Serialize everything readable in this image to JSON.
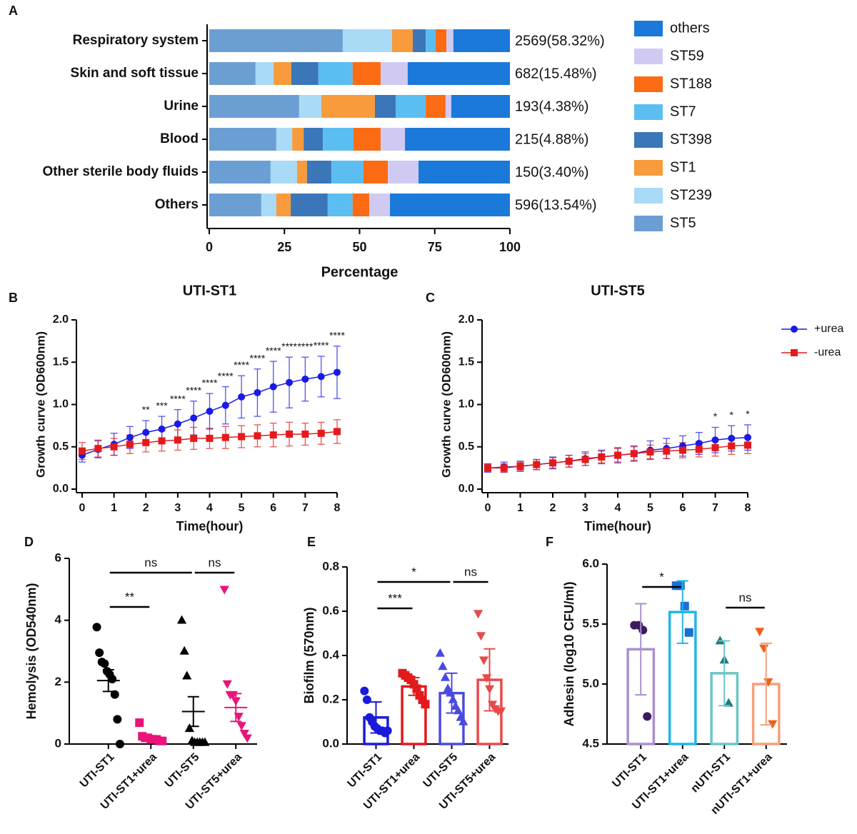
{
  "chart_data": [
    {
      "type": "bar",
      "orientation": "horizontal",
      "stacked": true,
      "panel_label": "A",
      "xlabel": "Percentage",
      "categories": [
        "Respiratory system",
        "Skin and soft tissue",
        "Urine",
        "Blood",
        "Other sterile body fluids",
        "Others"
      ],
      "bar_labels": [
        "2569(58.32%)",
        "682(15.48%)",
        "193(4.38%)",
        "215(4.88%)",
        "150(3.40%)",
        "596(13.54%)"
      ],
      "xlim": [
        0,
        100
      ],
      "xticks": [
        0,
        25,
        50,
        75,
        100
      ],
      "series": [
        {
          "name": "ST5",
          "color": "#6b9fd3",
          "values": [
            44.4,
            15.4,
            29.9,
            22.3,
            20.4,
            17.3
          ]
        },
        {
          "name": "ST239",
          "color": "#a9daf6",
          "values": [
            16.4,
            6,
            7.4,
            5.3,
            8.8,
            5
          ]
        },
        {
          "name": "ST1",
          "color": "#f79b3c",
          "values": [
            6.9,
            5.9,
            17.8,
            3.8,
            3.3,
            4.8
          ]
        },
        {
          "name": "ST398",
          "color": "#3b76b9",
          "values": [
            4.3,
            9,
            6.9,
            6.4,
            8.1,
            12.3
          ]
        },
        {
          "name": "ST7",
          "color": "#5cbdf1",
          "values": [
            3.3,
            11.4,
            10,
            10.2,
            10.7,
            8.3
          ]
        },
        {
          "name": "ST188",
          "color": "#fa6b14",
          "values": [
            3.6,
            9.3,
            6.6,
            9,
            8.1,
            5.5
          ]
        },
        {
          "name": "ST59",
          "color": "#d0caf3",
          "values": [
            2.3,
            9,
            1.9,
            8.1,
            10.2,
            6.9
          ]
        },
        {
          "name": "others",
          "color": "#1b79d9",
          "values": [
            18.8,
            34,
            19.5,
            34.9,
            30.4,
            39.9
          ]
        }
      ]
    },
    {
      "type": "line",
      "panel_label": "B",
      "title": "UTI-ST1",
      "xlabel": "Time(hour)",
      "ylabel": "Growth curve (OD600nm)",
      "x": [
        0,
        0.5,
        1,
        1.5,
        2,
        2.5,
        3,
        3.5,
        4,
        4.5,
        5,
        5.5,
        6,
        6.5,
        7,
        7.5,
        8
      ],
      "xlim": [
        0,
        8
      ],
      "xticks": [
        0,
        1,
        2,
        3,
        4,
        5,
        6,
        7,
        8
      ],
      "ylim": [
        0,
        2
      ],
      "yticks": [
        {
          "value": 0,
          "label": "0.0"
        },
        0.5,
        {
          "value": 1,
          "label": "1.0"
        },
        1.5,
        {
          "value": 2,
          "label": "2.0"
        }
      ],
      "series": [
        {
          "name": "+urea",
          "color": "#1a1ae6",
          "marker": "circle",
          "values": [
            0.4,
            0.47,
            0.53,
            0.61,
            0.67,
            0.71,
            0.77,
            0.84,
            0.92,
            0.99,
            1.09,
            1.14,
            1.21,
            1.26,
            1.3,
            1.33,
            1.38
          ],
          "errors": [
            0.08,
            0.1,
            0.13,
            0.13,
            0.14,
            0.15,
            0.17,
            0.2,
            0.21,
            0.22,
            0.25,
            0.28,
            0.3,
            0.3,
            0.26,
            0.24,
            0.31
          ]
        },
        {
          "name": "-urea",
          "color": "#e31a1c",
          "marker": "square",
          "values": [
            0.45,
            0.48,
            0.5,
            0.53,
            0.55,
            0.57,
            0.58,
            0.6,
            0.6,
            0.61,
            0.62,
            0.63,
            0.64,
            0.65,
            0.65,
            0.66,
            0.68
          ],
          "errors": [
            0.1,
            0.1,
            0.1,
            0.11,
            0.11,
            0.12,
            0.12,
            0.13,
            0.12,
            0.13,
            0.13,
            0.13,
            0.14,
            0.14,
            0.13,
            0.13,
            0.14
          ]
        }
      ],
      "significance": [
        {
          "x": 2,
          "label": "**"
        },
        {
          "x": 2.5,
          "label": "***"
        },
        {
          "x": 3,
          "label": "****"
        },
        {
          "x": 3.5,
          "label": "****"
        },
        {
          "x": 4,
          "label": "****"
        },
        {
          "x": 4.5,
          "label": "****"
        },
        {
          "x": 5,
          "label": "****"
        },
        {
          "x": 5.5,
          "label": "****"
        },
        {
          "x": 6,
          "label": "****"
        },
        {
          "x": 6.5,
          "label": "****"
        },
        {
          "x": 7,
          "label": "****"
        },
        {
          "x": 7.5,
          "label": "****"
        },
        {
          "x": 8,
          "label": "****"
        }
      ]
    },
    {
      "type": "line",
      "panel_label": "C",
      "title": "UTI-ST5",
      "xlabel": "Time(hour)",
      "ylabel": "Growth curve (OD600nm)",
      "legend": "right",
      "x": [
        0,
        0.5,
        1,
        1.5,
        2,
        2.5,
        3,
        3.5,
        4,
        4.5,
        5,
        5.5,
        6,
        6.5,
        7,
        7.5,
        8
      ],
      "xlim": [
        0,
        8
      ],
      "xticks": [
        0,
        1,
        2,
        3,
        4,
        5,
        6,
        7,
        8
      ],
      "ylim": [
        0,
        2
      ],
      "yticks": [
        {
          "value": 0,
          "label": "0.0"
        },
        0.5,
        {
          "value": 1,
          "label": "1.0"
        },
        1.5,
        {
          "value": 2,
          "label": "2.0"
        }
      ],
      "series": [
        {
          "name": "+urea",
          "color": "#1a1ae6",
          "marker": "circle",
          "values": [
            0.25,
            0.26,
            0.27,
            0.29,
            0.31,
            0.33,
            0.36,
            0.38,
            0.4,
            0.42,
            0.46,
            0.48,
            0.51,
            0.54,
            0.58,
            0.6,
            0.61
          ],
          "errors": [
            0.05,
            0.06,
            0.06,
            0.06,
            0.07,
            0.07,
            0.08,
            0.08,
            0.09,
            0.09,
            0.11,
            0.12,
            0.12,
            0.13,
            0.15,
            0.15,
            0.15
          ]
        },
        {
          "name": "-urea",
          "color": "#e31a1c",
          "marker": "square",
          "values": [
            0.25,
            0.25,
            0.27,
            0.29,
            0.31,
            0.33,
            0.35,
            0.38,
            0.4,
            0.42,
            0.44,
            0.45,
            0.46,
            0.47,
            0.49,
            0.51,
            0.52
          ],
          "errors": [
            0.04,
            0.05,
            0.05,
            0.06,
            0.06,
            0.07,
            0.07,
            0.07,
            0.08,
            0.08,
            0.08,
            0.09,
            0.09,
            0.09,
            0.1,
            0.1,
            0.1
          ]
        }
      ],
      "significance": [
        {
          "x": 7,
          "label": "*"
        },
        {
          "x": 7.5,
          "label": "*"
        },
        {
          "x": 8,
          "label": "*"
        }
      ]
    },
    {
      "type": "strip",
      "panel_label": "D",
      "ylabel": "Hemolysis (OD540nm)",
      "categories": [
        "UTI-ST1",
        "UTI-ST1+urea",
        "UTI-ST5",
        "UTI-ST5+urea"
      ],
      "markers": [
        "circle",
        "square",
        "triangle",
        "triangle-down"
      ],
      "ylim": [
        0,
        6
      ],
      "yticks": [
        0,
        2,
        4,
        6
      ],
      "groups": [
        {
          "color": "#000000",
          "points": [
            3.78,
            2.95,
            2.65,
            2.6,
            2.35,
            2.25,
            2.1,
            1.6,
            0.8,
            0
          ],
          "mean": 2.05,
          "error": 0.35
        },
        {
          "color": "#e8157a",
          "points": [
            0.69,
            0.25,
            0.2,
            0.2,
            0.15,
            0.15,
            0.15,
            0.1,
            0.1
          ],
          "mean": 0.2,
          "error": 0.07
        },
        {
          "color": "#000000",
          "points": [
            4,
            3,
            2.2,
            0.5,
            0.1,
            0.05,
            0.05,
            0.05,
            0.05,
            0.05
          ],
          "mean": 1.05,
          "error": 0.48
        },
        {
          "color": "#e8157a",
          "points": [
            5,
            1.95,
            1.6,
            1.6,
            1.4,
            0.9,
            0.6,
            0.35,
            0.2
          ],
          "mean": 1.18,
          "error": 0.45
        }
      ],
      "comparisons": [
        {
          "from": 0,
          "to": 1,
          "label": "**"
        },
        {
          "from": 0,
          "to": 2,
          "label": "ns"
        },
        {
          "from": 2,
          "to": 3,
          "label": "ns"
        }
      ]
    },
    {
      "type": "bar",
      "panel_label": "E",
      "ylabel": "Biofilm (570nm)",
      "categories": [
        "UTI-ST1",
        "UTI-ST1+urea",
        "UTI-ST5",
        "UTI-ST5+urea"
      ],
      "markers": [
        "circle",
        "square",
        "triangle",
        "triangle-down"
      ],
      "ylim": [
        0,
        0.8
      ],
      "yticks": [
        {
          "value": 0,
          "label": "0.0"
        },
        0.2,
        0.4,
        0.6,
        0.8
      ],
      "groups": [
        {
          "color": "#1a1adb",
          "points": [
            0.24,
            0.2,
            0.12,
            0.1,
            0.08,
            0.07,
            0.06,
            0.06,
            0.05,
            0.06
          ],
          "mean": 0.12,
          "error": 0.07
        },
        {
          "color": "#e31a1c",
          "points": [
            0.32,
            0.31,
            0.3,
            0.29,
            0.27,
            0.25,
            0.22,
            0.2,
            0.18
          ],
          "mean": 0.26,
          "error": 0.04
        },
        {
          "color": "#4a4ae0",
          "points": [
            0.41,
            0.35,
            0.3,
            0.25,
            0.23,
            0.2,
            0.17,
            0.15,
            0.12,
            0.1
          ],
          "mean": 0.23,
          "error": 0.09
        },
        {
          "color": "#e84a4a",
          "points": [
            0.59,
            0.49,
            0.38,
            0.3,
            0.25,
            0.18,
            0.16,
            0.15,
            0.15
          ],
          "mean": 0.29,
          "error": 0.14
        }
      ],
      "comparisons": [
        {
          "from": 0,
          "to": 1,
          "label": "***"
        },
        {
          "from": 0,
          "to": 2,
          "label": "*"
        },
        {
          "from": 2,
          "to": 3,
          "label": "ns"
        }
      ]
    },
    {
      "type": "bar",
      "panel_label": "F",
      "ylabel": "Adhesin (log10 CFU/ml)",
      "categories": [
        "UTI-ST1",
        "UTI-ST1+urea",
        "nUTI-ST1",
        "nUTI-ST1+urea"
      ],
      "markers": [
        "circle",
        "square",
        "triangle",
        "triangle-down"
      ],
      "ylim": [
        4.5,
        6
      ],
      "yticks": [
        4.5,
        {
          "value": 5,
          "label": "5.0"
        },
        5.5,
        {
          "value": 6,
          "label": "6.0"
        }
      ],
      "groups": [
        {
          "color": "#a98fd0",
          "point_color": "#3b1a5e",
          "points": [
            5.49,
            5.49,
            5.45,
            4.73
          ],
          "mean": 5.29,
          "error": 0.38
        },
        {
          "color": "#22b5e8",
          "point_color": "#1a6fd6",
          "points": [
            5.82,
            5.82,
            5.65,
            5.43
          ],
          "mean": 5.6,
          "error": 0.26
        },
        {
          "color": "#6cc5c8",
          "point_color": "#1c7a7a",
          "points": [
            5.36,
            5.2,
            4.84
          ],
          "mean": 5.09,
          "error": 0.27
        },
        {
          "color": "#f4a07a",
          "point_color": "#e8641e",
          "points": [
            5.44,
            5.3,
            5.02,
            4.67
          ],
          "mean": 5.0,
          "error": 0.34
        }
      ],
      "comparisons": [
        {
          "from": 0,
          "to": 1,
          "label": "*"
        },
        {
          "from": 2,
          "to": 3,
          "label": "ns"
        }
      ]
    }
  ]
}
